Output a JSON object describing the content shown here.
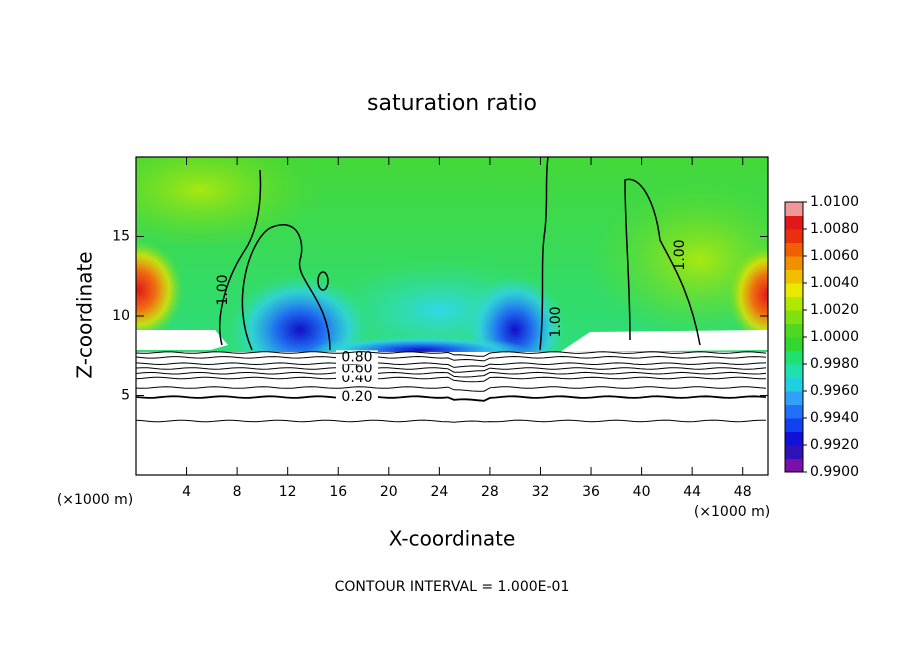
{
  "chart_data": {
    "type": "contour",
    "title": "saturation ratio",
    "x_label": "X-coordinate",
    "y_label": "Z-coordinate",
    "x_unit": "(×1000 m)",
    "footnote": "CONTOUR INTERVAL = 1.000E-01",
    "xlim": [
      0,
      50
    ],
    "ylim": [
      0,
      20
    ],
    "xticks": [
      4,
      8,
      12,
      16,
      20,
      24,
      28,
      32,
      36,
      40,
      44,
      48
    ],
    "yticks": [
      5,
      10,
      15
    ],
    "contours": [
      {
        "level": 0.1,
        "z": 3.4
      },
      {
        "level": 0.2,
        "z": 4.9,
        "label": "0.20"
      },
      {
        "level": 0.3,
        "z": 5.5
      },
      {
        "level": 0.4,
        "z": 6.1,
        "label": "0.40"
      },
      {
        "level": 0.5,
        "z": 6.4
      },
      {
        "level": 0.6,
        "z": 6.7,
        "label": "0.60"
      },
      {
        "level": 0.7,
        "z": 7.0
      },
      {
        "level": 0.8,
        "z": 7.4,
        "label": "0.80"
      },
      {
        "level": 0.9,
        "z": 7.7
      }
    ],
    "saturation_contour_labels": [
      "1.00",
      "1.00",
      "1.00"
    ],
    "colorbar": {
      "lim": [
        0.99,
        1.01
      ],
      "ticks": [
        {
          "value": 0.99,
          "label": "0.9900"
        },
        {
          "value": 0.992,
          "label": "0.9920"
        },
        {
          "value": 0.994,
          "label": "0.9940"
        },
        {
          "value": 0.996,
          "label": "0.9960"
        },
        {
          "value": 0.998,
          "label": "0.9980"
        },
        {
          "value": 1.0,
          "label": "1.0000"
        },
        {
          "value": 1.002,
          "label": "1.0020"
        },
        {
          "value": 1.004,
          "label": "1.0040"
        },
        {
          "value": 1.006,
          "label": "1.0060"
        },
        {
          "value": 1.008,
          "label": "1.0080"
        },
        {
          "value": 1.01,
          "label": "1.0100"
        }
      ],
      "colors": [
        "#7a10a8",
        "#3010b8",
        "#1010d8",
        "#1040f0",
        "#2070f8",
        "#30a0f8",
        "#20d0e0",
        "#20e0b0",
        "#20e070",
        "#30d830",
        "#50d820",
        "#80e010",
        "#b0e800",
        "#e8e800",
        "#f0c000",
        "#f09000",
        "#f06000",
        "#e83010",
        "#e01818",
        "#f09898"
      ]
    }
  }
}
